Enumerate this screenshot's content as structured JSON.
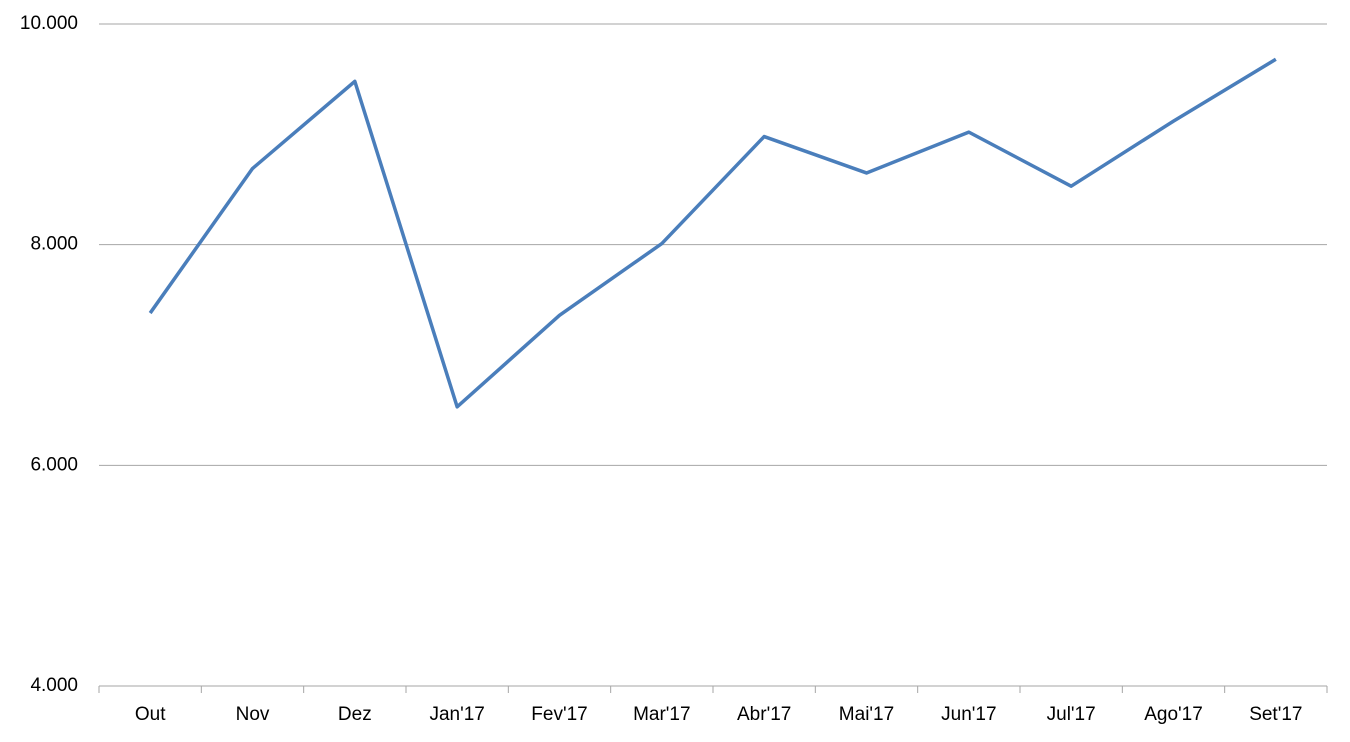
{
  "chart_data": {
    "type": "line",
    "categories": [
      "Out",
      "Nov",
      "Dez",
      "Jan'17",
      "Fev'17",
      "Mar'17",
      "Abr'17",
      "Mai'17",
      "Jun'17",
      "Jul'17",
      "Ago'17",
      "Set'17"
    ],
    "values": [
      7380,
      8690,
      9480,
      6530,
      7360,
      8010,
      8980,
      8650,
      9020,
      8530,
      9120,
      9680
    ],
    "color": "#4a7ebb",
    "ylim": [
      4000,
      10000
    ],
    "yticks": [
      {
        "value": 4000,
        "label": "4.000"
      },
      {
        "value": 6000,
        "label": "6.000"
      },
      {
        "value": 8000,
        "label": "8.000"
      },
      {
        "value": 10000,
        "label": "10.000"
      }
    ],
    "grid": true
  }
}
